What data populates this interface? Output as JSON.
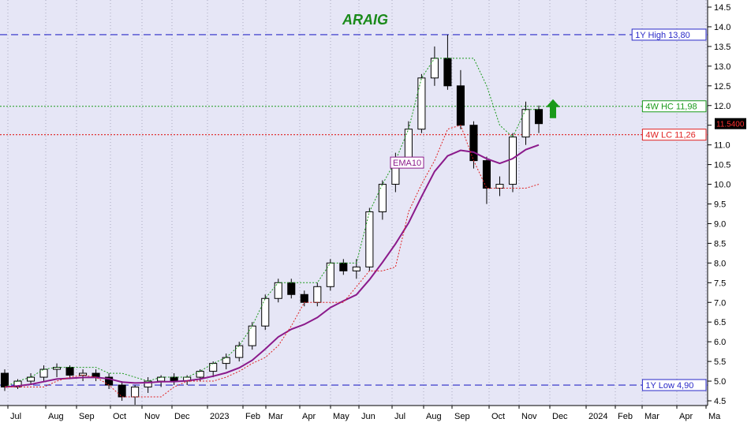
{
  "chart_data": {
    "type": "candlestick",
    "title": "ARAIG",
    "title_color": "#1a8a1a",
    "background": "#e6e6f6",
    "grid": "vertical dotted",
    "xlabel": "",
    "ylabel": "",
    "ylim": [
      4.5,
      14.5
    ],
    "y_ticks": [
      "4.5",
      "5.0",
      "5.5",
      "6.0",
      "6.5",
      "7.0",
      "7.5",
      "8.0",
      "8.5",
      "9.0",
      "9.5",
      "10.0",
      "10.5",
      "11.0",
      "11.5",
      "12.0",
      "12.5",
      "13.0",
      "13.5",
      "14.0",
      "14.5"
    ],
    "x_ticks": [
      "Jul",
      "Aug",
      "Sep",
      "Oct",
      "Nov",
      "Dec",
      "2023",
      "Feb",
      "Mar",
      "Apr",
      "May",
      "Jun",
      "Jul",
      "Aug",
      "Sep",
      "Oct",
      "Nov",
      "Dec",
      "2024",
      "Feb",
      "Mar",
      "Apr",
      "Ma"
    ],
    "last_price": "11.5400",
    "levels": [
      {
        "label": "1Y High 13,80",
        "value": 13.8,
        "color": "#2a2ac8",
        "style": "dashed"
      },
      {
        "label": "4W HC 11,98",
        "value": 11.98,
        "color": "#1a9a1a",
        "style": "dotted"
      },
      {
        "label": "4W LC 11,26",
        "value": 11.26,
        "color": "#e02020",
        "style": "dotted"
      },
      {
        "label": "1Y Low 4,90",
        "value": 4.9,
        "color": "#2a2ac8",
        "style": "dashed"
      }
    ],
    "indicator_label": "EMA10",
    "indicator_color": "#8b1a8b",
    "signal": "up-arrow",
    "signal_color": "#1a9a1a",
    "candles": [
      [
        5.2,
        5.3,
        4.75,
        4.85
      ],
      [
        4.85,
        5.05,
        4.8,
        5.0
      ],
      [
        5.0,
        5.2,
        4.9,
        5.1
      ],
      [
        5.1,
        5.4,
        5.0,
        5.3
      ],
      [
        5.3,
        5.45,
        5.1,
        5.35
      ],
      [
        5.35,
        5.4,
        5.05,
        5.15
      ],
      [
        5.15,
        5.3,
        5.0,
        5.2
      ],
      [
        5.2,
        5.3,
        5.0,
        5.1
      ],
      [
        5.1,
        5.2,
        4.8,
        4.9
      ],
      [
        4.9,
        5.0,
        4.5,
        4.6
      ],
      [
        4.6,
        4.9,
        4.4,
        4.85
      ],
      [
        4.85,
        5.1,
        4.7,
        5.0
      ],
      [
        5.0,
        5.15,
        4.85,
        5.1
      ],
      [
        5.1,
        5.2,
        4.9,
        5.0
      ],
      [
        5.0,
        5.15,
        4.9,
        5.1
      ],
      [
        5.1,
        5.3,
        5.0,
        5.25
      ],
      [
        5.25,
        5.5,
        5.1,
        5.45
      ],
      [
        5.45,
        5.7,
        5.3,
        5.6
      ],
      [
        5.6,
        6.0,
        5.5,
        5.9
      ],
      [
        5.9,
        6.5,
        5.8,
        6.4
      ],
      [
        6.4,
        7.2,
        6.3,
        7.1
      ],
      [
        7.1,
        7.6,
        7.0,
        7.5
      ],
      [
        7.5,
        7.6,
        7.1,
        7.2
      ],
      [
        7.2,
        7.3,
        6.9,
        7.0
      ],
      [
        7.0,
        7.5,
        6.9,
        7.4
      ],
      [
        7.4,
        8.1,
        7.3,
        8.0
      ],
      [
        8.0,
        8.1,
        7.7,
        7.8
      ],
      [
        7.8,
        8.1,
        7.6,
        7.9
      ],
      [
        7.9,
        9.4,
        7.8,
        9.3
      ],
      [
        9.3,
        10.1,
        9.1,
        10.0
      ],
      [
        10.0,
        10.8,
        9.8,
        10.6
      ],
      [
        10.6,
        11.6,
        10.5,
        11.4
      ],
      [
        11.4,
        12.8,
        11.3,
        12.7
      ],
      [
        12.7,
        13.5,
        12.5,
        13.2
      ],
      [
        13.2,
        13.8,
        12.4,
        12.5
      ],
      [
        12.5,
        12.9,
        11.4,
        11.5
      ],
      [
        11.5,
        11.6,
        10.4,
        10.6
      ],
      [
        10.6,
        10.7,
        9.5,
        9.9
      ],
      [
        9.9,
        10.2,
        9.7,
        10.0
      ],
      [
        10.0,
        11.3,
        9.8,
        11.2
      ],
      [
        11.2,
        12.1,
        11.0,
        11.9
      ],
      [
        11.9,
        12.0,
        11.3,
        11.54
      ]
    ]
  }
}
